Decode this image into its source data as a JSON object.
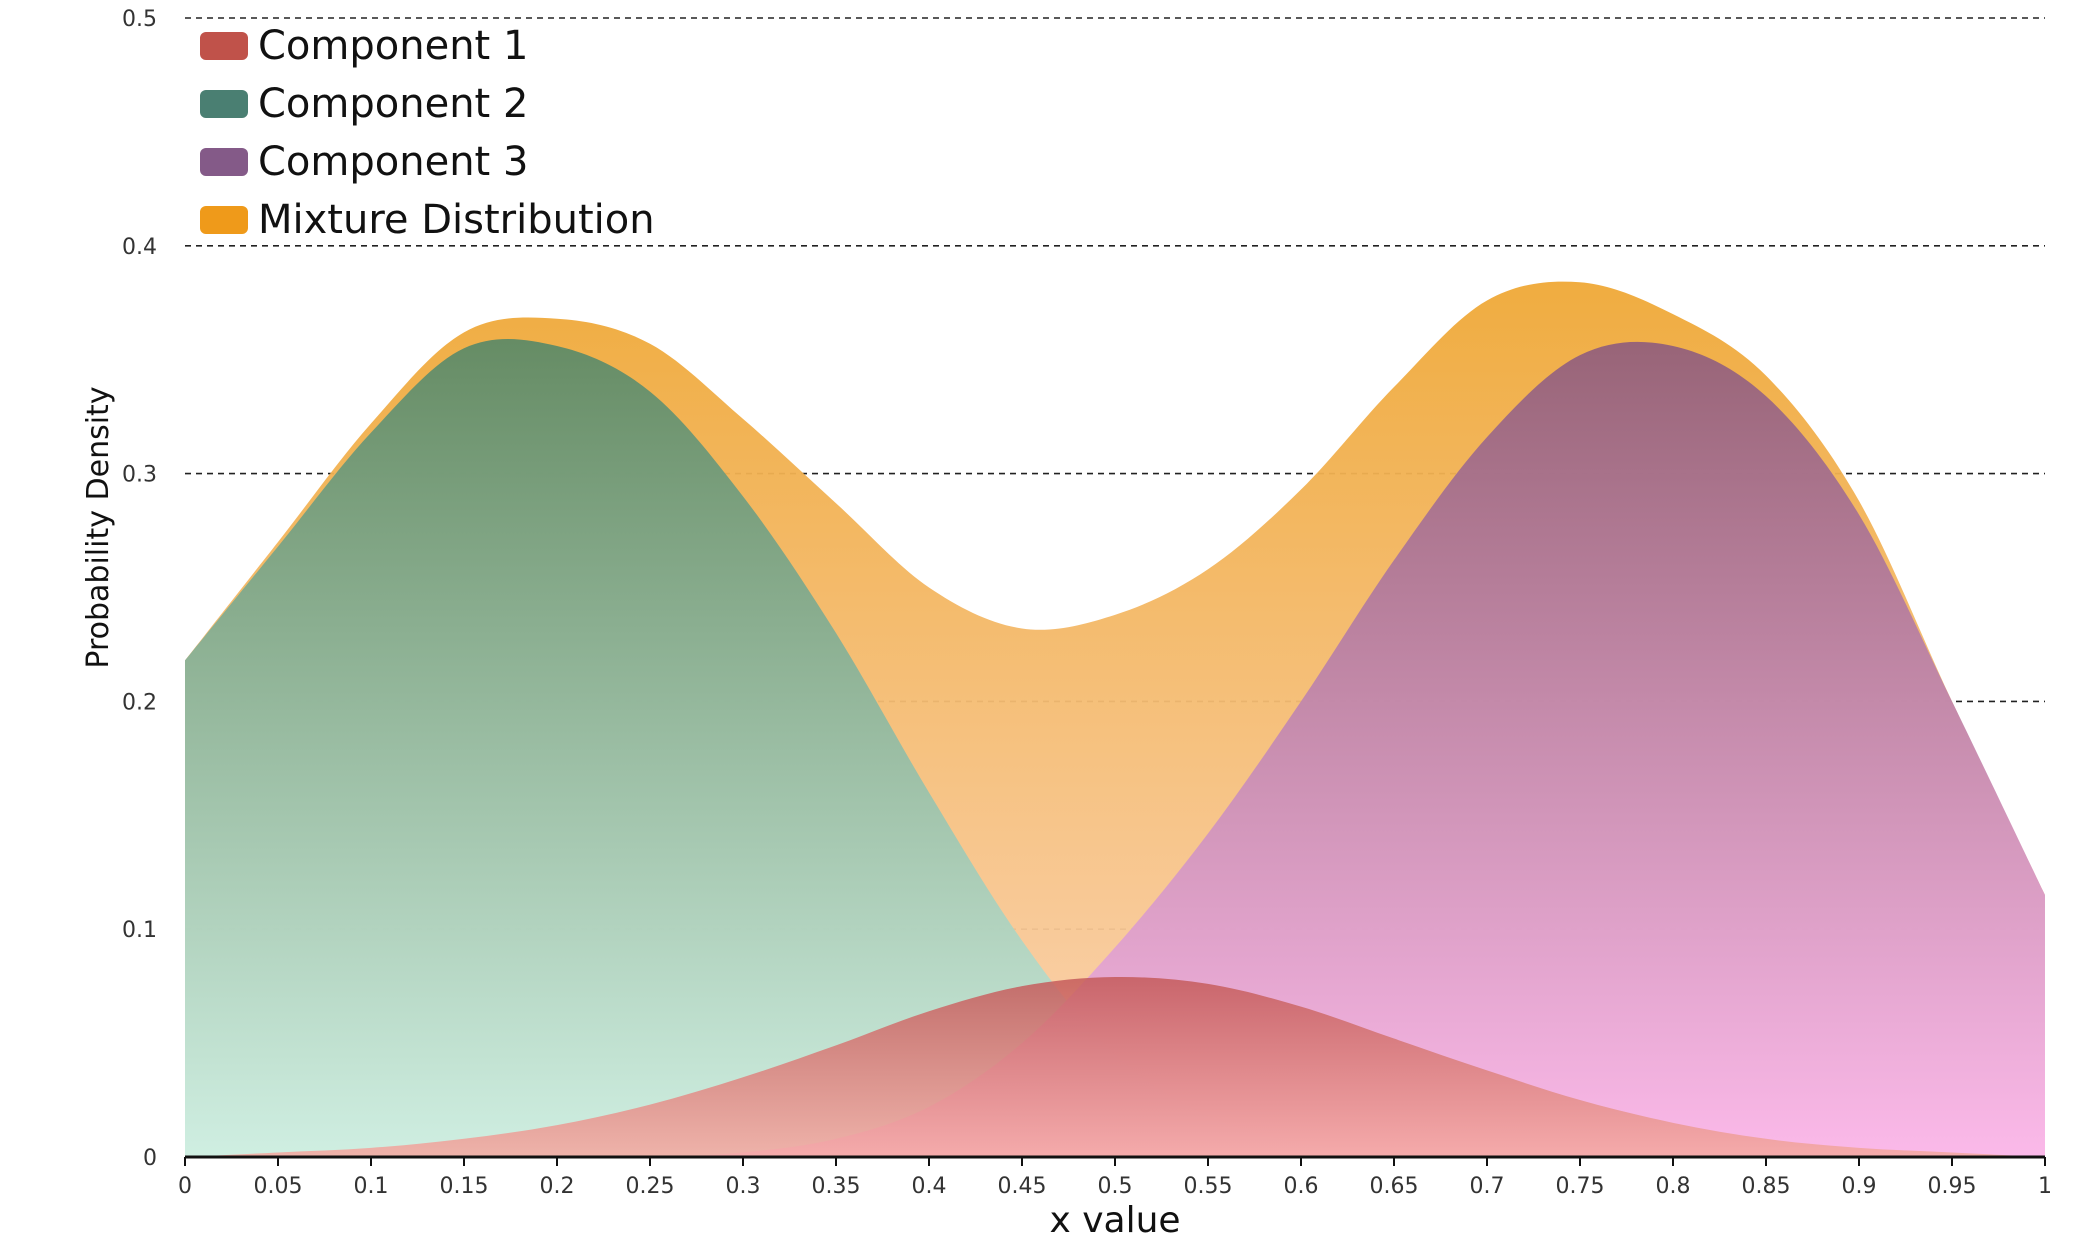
{
  "chart_data": {
    "type": "area",
    "title": "",
    "xlabel": "x value",
    "ylabel": "Probability Density",
    "xlim": [
      0,
      1
    ],
    "ylim": [
      0,
      0.5
    ],
    "grid": true,
    "legend_position": "top-left",
    "x_ticks": [
      "0",
      "0.05",
      "0.1",
      "0.15",
      "0.2",
      "0.25",
      "0.3",
      "0.35",
      "0.4",
      "0.45",
      "0.5",
      "0.55",
      "0.6",
      "0.65",
      "0.7",
      "0.75",
      "0.8",
      "0.85",
      "0.9",
      "0.95",
      "1"
    ],
    "y_ticks": [
      "0",
      "0.1",
      "0.2",
      "0.3",
      "0.4",
      "0.5"
    ],
    "x": [
      0.0,
      0.05,
      0.1,
      0.15,
      0.2,
      0.25,
      0.3,
      0.35,
      0.4,
      0.45,
      0.5,
      0.55,
      0.6,
      0.65,
      0.7,
      0.75,
      0.8,
      0.85,
      0.9,
      0.95,
      1.0
    ],
    "series": [
      {
        "name": "Component 1",
        "color": "#c0524a",
        "gradient": [
          "#c45a5a",
          "#f4a8a0"
        ],
        "values": [
          0.0,
          0.002,
          0.004,
          0.008,
          0.014,
          0.023,
          0.035,
          0.049,
          0.064,
          0.075,
          0.079,
          0.076,
          0.066,
          0.052,
          0.038,
          0.025,
          0.015,
          0.008,
          0.004,
          0.002,
          0.0
        ]
      },
      {
        "name": "Component 2",
        "color": "#4a7f72",
        "gradient": [
          "#5e8a66",
          "#cdf0e4"
        ],
        "values": [
          0.218,
          0.268,
          0.318,
          0.355,
          0.356,
          0.336,
          0.29,
          0.23,
          0.16,
          0.095,
          0.045,
          0.018,
          0.006,
          0.002,
          0.0,
          0.0,
          0.0,
          0.0,
          0.0,
          0.0,
          0.0
        ]
      },
      {
        "name": "Component 3",
        "color": "#845a88",
        "gradient": [
          "#93607a",
          "#fbb8ec"
        ],
        "values": [
          0.0,
          0.0,
          0.0,
          0.0,
          0.0,
          0.0,
          0.002,
          0.008,
          0.022,
          0.05,
          0.092,
          0.142,
          0.2,
          0.262,
          0.316,
          0.352,
          0.356,
          0.334,
          0.282,
          0.2,
          0.115
        ]
      },
      {
        "name": "Mixture Distribution",
        "color": "#ef9a1a",
        "gradient": [
          "#efa836",
          "#fbd2b4"
        ],
        "values": [
          0.218,
          0.27,
          0.322,
          0.362,
          0.368,
          0.357,
          0.324,
          0.287,
          0.25,
          0.232,
          0.238,
          0.258,
          0.293,
          0.338,
          0.376,
          0.384,
          0.37,
          0.343,
          0.288,
          0.2,
          0.115
        ]
      }
    ]
  }
}
